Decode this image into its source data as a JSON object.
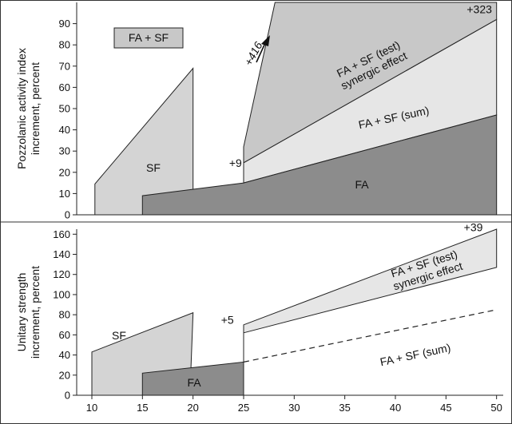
{
  "chart_data": [
    {
      "type": "area",
      "ylabel_lines": [
        "Pozzolanic activity index",
        "increment, percent"
      ],
      "ylim": [
        0,
        100
      ],
      "yticks": [
        0,
        10,
        20,
        30,
        40,
        50,
        60,
        70,
        80,
        90
      ],
      "legend": {
        "label": "FA + SF",
        "color": "#c8c8c8",
        "placement": "top-left"
      },
      "colors": {
        "sf": "#d4d4d4",
        "fa": "#8c8c8c",
        "sum": "#e6e6e6",
        "synergy": "#c8c8c8"
      },
      "regions": [
        {
          "label": "SF",
          "points": [
            [
              10.3,
              0
            ],
            [
              10.3,
              14.5
            ],
            [
              20,
              69
            ],
            [
              20,
              12
            ],
            [
              19.9,
              0
            ]
          ]
        },
        {
          "label": "FA",
          "points": [
            [
              15,
              0
            ],
            [
              15,
              9
            ],
            [
              25,
              15
            ],
            [
              50,
              47
            ],
            [
              50,
              0
            ]
          ]
        },
        {
          "label": "FA + SF (sum)",
          "points": [
            [
              25,
              15
            ],
            [
              50,
              47
            ],
            [
              50,
              92
            ],
            [
              25,
              24.5
            ]
          ]
        },
        {
          "label": "FA + SF (test)\nsynergic effect",
          "points": [
            [
              25,
              24.5
            ],
            [
              50,
              92
            ],
            [
              50,
              100
            ],
            [
              28.1,
              100
            ],
            [
              25,
              32
            ]
          ]
        }
      ],
      "annotations": [
        {
          "text": "+9",
          "x": 24.2,
          "y": 24.5
        },
        {
          "text": "+416",
          "x": 26.3,
          "y": 75
        },
        {
          "text": "+323",
          "x": 48.3,
          "y": 95
        }
      ]
    },
    {
      "type": "area",
      "ylabel_lines": [
        "Unitary strength",
        "increment, percent"
      ],
      "xlim": [
        8.5,
        50.5
      ],
      "xticks": [
        10,
        15,
        20,
        25,
        30,
        35,
        40,
        45,
        50
      ],
      "ylim": [
        0,
        165
      ],
      "yticks": [
        0,
        20,
        40,
        60,
        80,
        100,
        120,
        140,
        160
      ],
      "colors": {
        "sf": "#d4d4d4",
        "fa": "#8c8c8c",
        "synergy": "#e6e6e6"
      },
      "regions": [
        {
          "label": "SF",
          "points": [
            [
              10,
              0
            ],
            [
              10,
              43
            ],
            [
              20,
              82
            ],
            [
              19.8,
              28
            ],
            [
              19.8,
              0
            ]
          ]
        },
        {
          "label": "FA",
          "points": [
            [
              15,
              0
            ],
            [
              15,
              22
            ],
            [
              25,
              33
            ],
            [
              25,
              0
            ]
          ]
        },
        {
          "label": "FA + SF (test)\nsynergic effect",
          "points": [
            [
              25,
              62
            ],
            [
              50,
              127
            ],
            [
              50,
              165
            ],
            [
              25,
              70
            ]
          ]
        }
      ],
      "dashed_line": {
        "label": "FA + SF (sum)",
        "points": [
          [
            25,
            33
          ],
          [
            50,
            85
          ]
        ]
      },
      "annotations": [
        {
          "text": "+5",
          "x": 23.4,
          "y": 71
        },
        {
          "text": "+39",
          "x": 47.7,
          "y": 163
        }
      ]
    }
  ]
}
